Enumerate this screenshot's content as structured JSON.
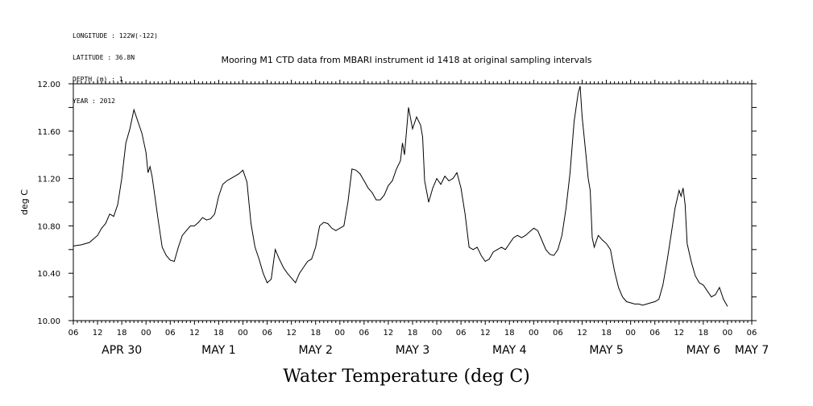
{
  "header": {
    "meta_lines": [
      "LONGITUDE : 122W(-122)",
      "LATITUDE : 36.8N",
      "DEPTH (m) : 1",
      "YEAR : 2012"
    ]
  },
  "chart_data": {
    "type": "line",
    "title": "Mooring M1 CTD data from MBARI instrument id 1418 at original sampling intervals",
    "xlabel": "Water Temperature (deg C)",
    "ylabel": "deg C",
    "ylim": [
      10.0,
      12.0
    ],
    "yticks": [
      10.0,
      10.4,
      10.8,
      11.2,
      11.6,
      12.0
    ],
    "ytick_labels": [
      "10.00",
      "10.40",
      "10.80",
      "11.20",
      "11.60",
      "12.00"
    ],
    "xlim_hours": [
      0,
      168
    ],
    "xtick_hour_labels": [
      "06",
      "12",
      "18",
      "00",
      "06",
      "12",
      "18",
      "00",
      "06",
      "12",
      "18",
      "00",
      "06",
      "12",
      "18",
      "00",
      "06",
      "12",
      "18",
      "00",
      "06",
      "12",
      "18",
      "00",
      "06",
      "12",
      "18",
      "00",
      "06"
    ],
    "day_labels": [
      {
        "text": "APR 30",
        "hour": 12
      },
      {
        "text": "MAY  1",
        "hour": 36
      },
      {
        "text": "MAY  2",
        "hour": 60
      },
      {
        "text": "MAY  3",
        "hour": 84
      },
      {
        "text": "MAY  4",
        "hour": 108
      },
      {
        "text": "MAY  5",
        "hour": 132
      },
      {
        "text": "MAY  6",
        "hour": 156
      },
      {
        "text": "MAY  7",
        "hour": 168
      }
    ],
    "x_axis_start": "APR 30 06:00",
    "series": [
      {
        "color": "#000000",
        "points": [
          [
            0,
            10.63
          ],
          [
            2,
            10.64
          ],
          [
            4,
            10.66
          ],
          [
            6,
            10.72
          ],
          [
            7,
            10.78
          ],
          [
            8,
            10.82
          ],
          [
            9,
            10.9
          ],
          [
            10,
            10.88
          ],
          [
            11,
            10.98
          ],
          [
            12,
            11.2
          ],
          [
            13,
            11.5
          ],
          [
            14,
            11.62
          ],
          [
            15,
            11.78
          ],
          [
            16,
            11.68
          ],
          [
            17,
            11.58
          ],
          [
            18,
            11.42
          ],
          [
            18.5,
            11.25
          ],
          [
            19,
            11.3
          ],
          [
            19.5,
            11.22
          ],
          [
            20,
            11.1
          ],
          [
            21,
            10.85
          ],
          [
            22,
            10.62
          ],
          [
            23,
            10.55
          ],
          [
            24,
            10.51
          ],
          [
            25,
            10.5
          ],
          [
            26,
            10.62
          ],
          [
            27,
            10.72
          ],
          [
            28,
            10.76
          ],
          [
            29,
            10.8
          ],
          [
            30,
            10.8
          ],
          [
            31,
            10.83
          ],
          [
            32,
            10.87
          ],
          [
            33,
            10.85
          ],
          [
            34,
            10.86
          ],
          [
            35,
            10.9
          ],
          [
            36,
            11.05
          ],
          [
            37,
            11.15
          ],
          [
            38,
            11.18
          ],
          [
            39,
            11.2
          ],
          [
            40,
            11.22
          ],
          [
            41,
            11.24
          ],
          [
            42,
            11.27
          ],
          [
            43,
            11.17
          ],
          [
            44,
            10.82
          ],
          [
            45,
            10.62
          ],
          [
            46,
            10.52
          ],
          [
            47,
            10.4
          ],
          [
            48,
            10.32
          ],
          [
            49,
            10.35
          ],
          [
            50,
            10.6
          ],
          [
            51,
            10.52
          ],
          [
            52,
            10.45
          ],
          [
            53,
            10.4
          ],
          [
            54,
            10.36
          ],
          [
            55,
            10.32
          ],
          [
            56,
            10.4
          ],
          [
            57,
            10.45
          ],
          [
            58,
            10.5
          ],
          [
            59,
            10.52
          ],
          [
            60,
            10.62
          ],
          [
            61,
            10.8
          ],
          [
            62,
            10.83
          ],
          [
            63,
            10.82
          ],
          [
            64,
            10.78
          ],
          [
            65,
            10.76
          ],
          [
            66,
            10.78
          ],
          [
            67,
            10.8
          ],
          [
            68,
            11.0
          ],
          [
            69,
            11.28
          ],
          [
            70,
            11.27
          ],
          [
            71,
            11.24
          ],
          [
            72,
            11.18
          ],
          [
            73,
            11.12
          ],
          [
            74,
            11.08
          ],
          [
            75,
            11.02
          ],
          [
            76,
            11.02
          ],
          [
            77,
            11.06
          ],
          [
            78,
            11.14
          ],
          [
            79,
            11.18
          ],
          [
            80,
            11.28
          ],
          [
            81,
            11.35
          ],
          [
            81.5,
            11.5
          ],
          [
            82,
            11.4
          ],
          [
            83,
            11.8
          ],
          [
            84,
            11.62
          ],
          [
            85,
            11.72
          ],
          [
            86,
            11.65
          ],
          [
            86.5,
            11.55
          ],
          [
            87,
            11.18
          ],
          [
            88,
            11.0
          ],
          [
            89,
            11.12
          ],
          [
            90,
            11.2
          ],
          [
            91,
            11.15
          ],
          [
            92,
            11.22
          ],
          [
            93,
            11.18
          ],
          [
            94,
            11.2
          ],
          [
            95,
            11.25
          ],
          [
            96,
            11.12
          ],
          [
            97,
            10.9
          ],
          [
            98,
            10.62
          ],
          [
            99,
            10.6
          ],
          [
            100,
            10.62
          ],
          [
            101,
            10.55
          ],
          [
            102,
            10.5
          ],
          [
            103,
            10.52
          ],
          [
            104,
            10.58
          ],
          [
            105,
            10.6
          ],
          [
            106,
            10.62
          ],
          [
            107,
            10.6
          ],
          [
            108,
            10.65
          ],
          [
            109,
            10.7
          ],
          [
            110,
            10.72
          ],
          [
            111,
            10.7
          ],
          [
            112,
            10.72
          ],
          [
            113,
            10.75
          ],
          [
            114,
            10.78
          ],
          [
            115,
            10.76
          ],
          [
            116,
            10.68
          ],
          [
            117,
            10.6
          ],
          [
            118,
            10.56
          ],
          [
            119,
            10.55
          ],
          [
            120,
            10.6
          ],
          [
            121,
            10.72
          ],
          [
            122,
            10.95
          ],
          [
            123,
            11.25
          ],
          [
            124,
            11.68
          ],
          [
            125,
            11.92
          ],
          [
            125.5,
            11.98
          ],
          [
            126,
            11.72
          ],
          [
            127,
            11.38
          ],
          [
            127.5,
            11.2
          ],
          [
            128,
            11.1
          ],
          [
            128.5,
            10.7
          ],
          [
            129,
            10.62
          ],
          [
            130,
            10.72
          ],
          [
            131,
            10.68
          ],
          [
            132,
            10.65
          ],
          [
            133,
            10.6
          ],
          [
            134,
            10.42
          ],
          [
            135,
            10.28
          ],
          [
            136,
            10.2
          ],
          [
            137,
            10.16
          ],
          [
            138,
            10.15
          ],
          [
            139,
            10.14
          ],
          [
            140,
            10.14
          ],
          [
            141,
            10.13
          ],
          [
            142,
            10.14
          ],
          [
            143,
            10.15
          ],
          [
            144,
            10.16
          ],
          [
            145,
            10.18
          ],
          [
            146,
            10.3
          ],
          [
            147,
            10.5
          ],
          [
            148,
            10.72
          ],
          [
            149,
            10.95
          ],
          [
            150,
            11.1
          ],
          [
            150.5,
            11.05
          ],
          [
            151,
            11.12
          ],
          [
            151.5,
            10.98
          ],
          [
            152,
            10.65
          ],
          [
            153,
            10.5
          ],
          [
            154,
            10.38
          ],
          [
            155,
            10.32
          ],
          [
            156,
            10.3
          ],
          [
            157,
            10.25
          ],
          [
            158,
            10.2
          ],
          [
            159,
            10.22
          ],
          [
            160,
            10.28
          ],
          [
            161,
            10.18
          ],
          [
            162,
            10.12
          ]
        ]
      }
    ]
  }
}
